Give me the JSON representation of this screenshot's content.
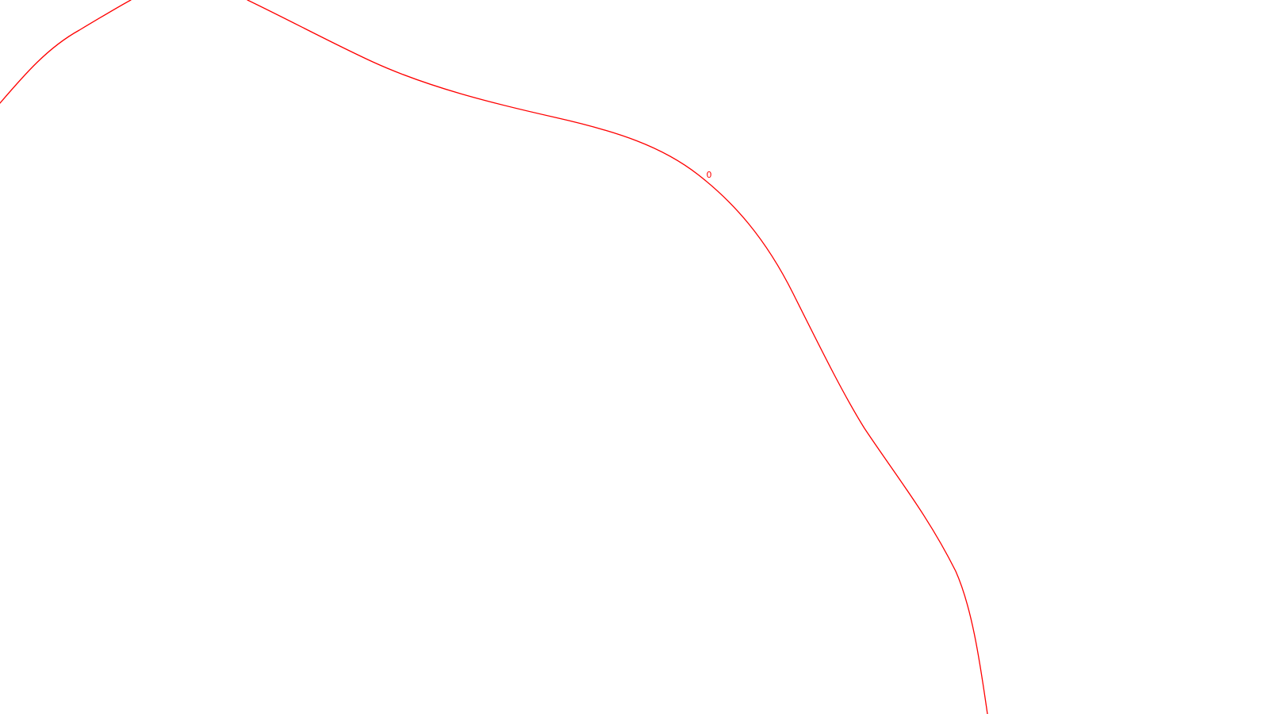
{
  "map": {
    "background_color": "#ffffff",
    "contour": {
      "color": "#ff0000",
      "level_label": "0"
    }
  }
}
